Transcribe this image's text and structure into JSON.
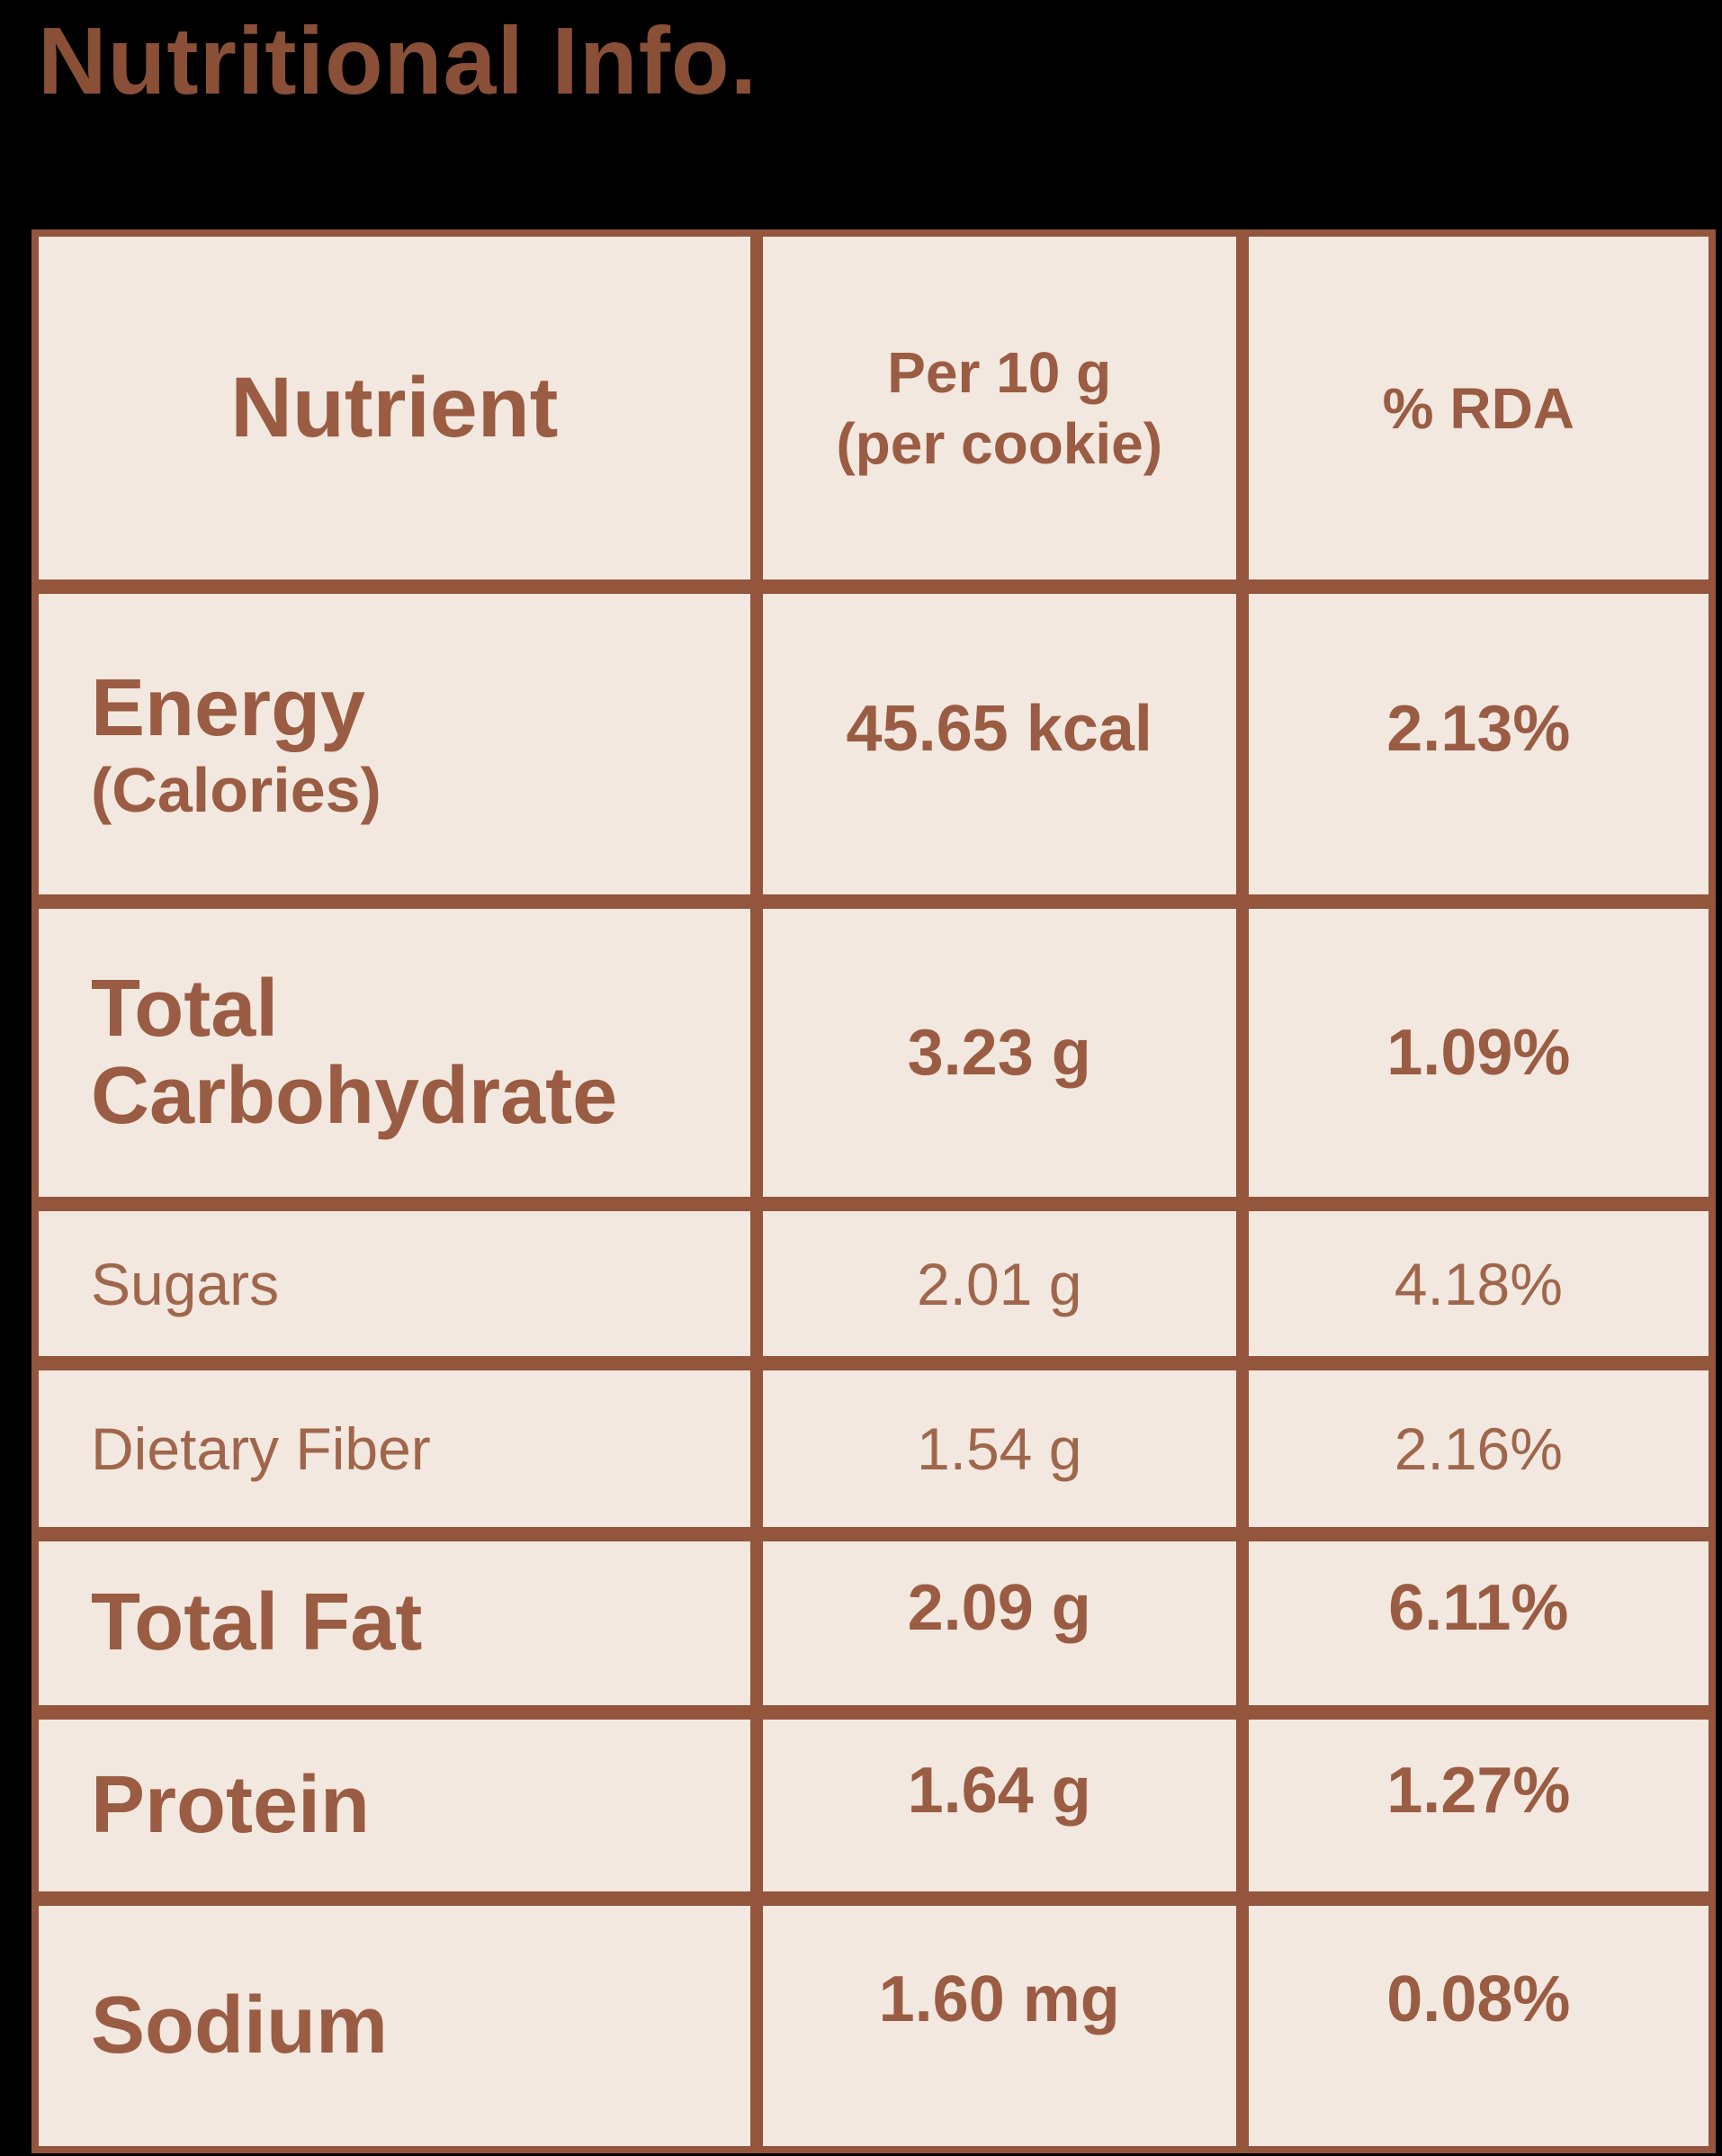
{
  "page": {
    "title": "Nutritional Info."
  },
  "colors": {
    "page_background": "#000000",
    "table_background": "#f2e8e0",
    "border_brown": "#93553c",
    "text_brown": "#9a5c42",
    "title_brown": "#8a5037"
  },
  "table": {
    "headers": {
      "nutrient": "Nutrient",
      "per_line1": "Per 10 g",
      "per_line2": "(per cookie)",
      "rda": "% RDA"
    },
    "rows": [
      {
        "label": "Energy",
        "sublabel": "(Calories)",
        "amount": "45.65 kcal",
        "rda": "2.13%"
      },
      {
        "label": "Total Carbohydrate",
        "sublabel": "",
        "amount": "3.23 g",
        "rda": "1.09%"
      },
      {
        "label": "Sugars",
        "sublabel": "",
        "amount": "2.01 g",
        "rda": "4.18%"
      },
      {
        "label": "Dietary Fiber",
        "sublabel": "",
        "amount": "1.54 g",
        "rda": "2.16%"
      },
      {
        "label": "Total Fat",
        "sublabel": "",
        "amount": "2.09 g",
        "rda": "6.11%"
      },
      {
        "label": "Protein",
        "sublabel": "",
        "amount": "1.64 g",
        "rda": "1.27%"
      },
      {
        "label": "Sodium",
        "sublabel": "",
        "amount": "1.60 mg",
        "rda": "0.08%"
      }
    ]
  }
}
